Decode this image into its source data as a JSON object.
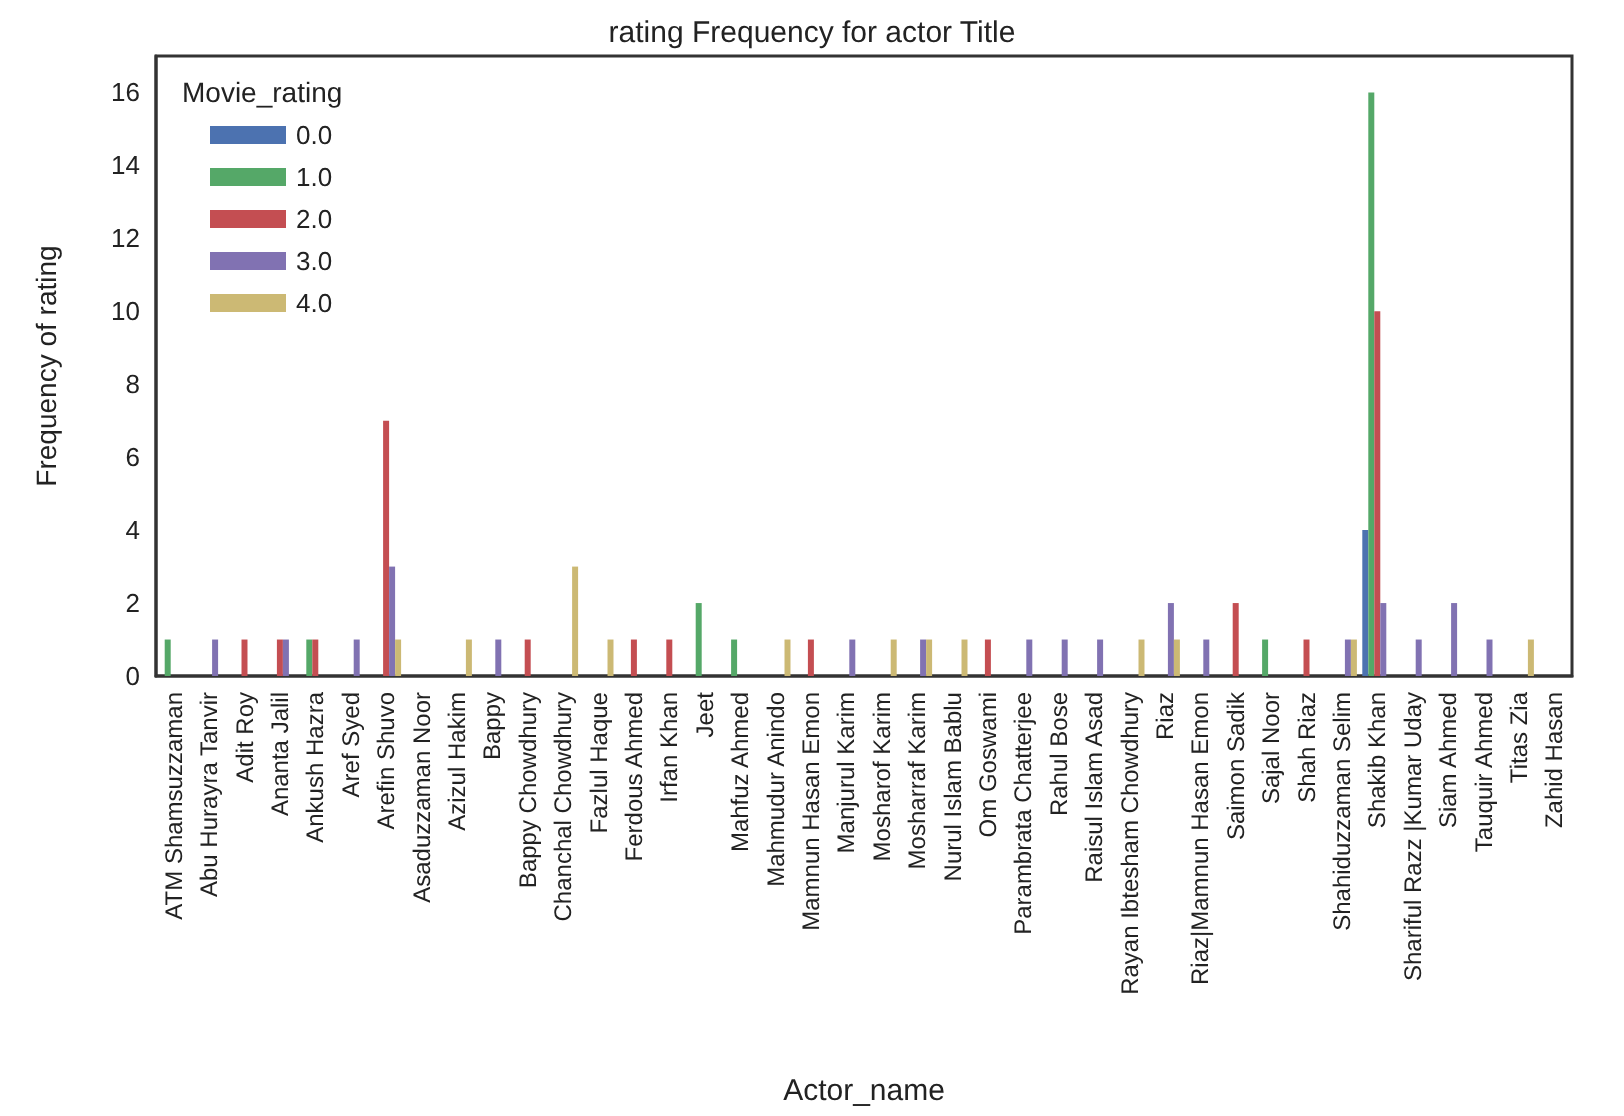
{
  "chart_data": {
    "type": "bar",
    "title": "rating Frequency for actor Title",
    "xlabel": "Actor_name",
    "ylabel": "Frequency of rating",
    "legend_title": "Movie_rating",
    "legend": "top left",
    "grid": false,
    "categories": [
      "ATM Shamsuzzaman",
      "Abu Hurayra Tanvir",
      "Adit Roy",
      "Ananta Jalil",
      "Ankush Hazra",
      "Aref Syed",
      "Arefin Shuvo",
      "Asaduzzaman Noor",
      "Azizul Hakim",
      "Bappy",
      "Bappy Chowdhury",
      "Chanchal Chowdhury",
      "Fazlul Haque",
      "Ferdous Ahmed",
      "Irfan Khan",
      "Jeet",
      "Mahfuz Ahmed",
      "Mahmudur Anindo",
      "Mamnun Hasan Emon",
      "Manjurul Karim",
      "Mosharof Karim",
      "Mosharraf Karim",
      "Nurul Islam Bablu",
      "Om Goswami",
      "Parambrata Chatterjee",
      "Rahul Bose",
      "Raisul Islam Asad",
      "Rayan Ibtesham Chowdhury",
      "Riaz",
      "Riaz|Mamnun Hasan Emon",
      "Saimon Sadik",
      "Sajal Noor",
      "Shah Riaz",
      "Shahiduzzaman Selim",
      "Shakib Khan",
      "Shariful Razz |Kumar Uday",
      "Siam Ahmed",
      "Tauquir Ahmed",
      "Titas Zia",
      "Zahid Hasan"
    ],
    "series": [
      {
        "name": "0.0",
        "color": "#4c72b0",
        "values": [
          null,
          null,
          null,
          null,
          null,
          null,
          null,
          null,
          null,
          null,
          null,
          null,
          null,
          null,
          null,
          null,
          null,
          null,
          null,
          null,
          null,
          null,
          null,
          null,
          null,
          null,
          null,
          null,
          null,
          null,
          null,
          null,
          null,
          null,
          4,
          null,
          null,
          null,
          null,
          null
        ]
      },
      {
        "name": "1.0",
        "color": "#55a868",
        "values": [
          1,
          null,
          null,
          null,
          1,
          null,
          null,
          null,
          null,
          null,
          null,
          null,
          null,
          null,
          null,
          2,
          1,
          null,
          null,
          null,
          null,
          null,
          null,
          null,
          null,
          null,
          null,
          null,
          null,
          null,
          null,
          1,
          null,
          null,
          16,
          null,
          null,
          null,
          null,
          null
        ]
      },
      {
        "name": "2.0",
        "color": "#c44e52",
        "values": [
          null,
          null,
          1,
          1,
          1,
          null,
          7,
          null,
          null,
          null,
          1,
          null,
          null,
          1,
          1,
          null,
          null,
          null,
          1,
          null,
          null,
          null,
          null,
          1,
          null,
          null,
          null,
          null,
          null,
          null,
          2,
          null,
          1,
          null,
          10,
          null,
          null,
          null,
          null,
          null
        ]
      },
      {
        "name": "3.0",
        "color": "#8172b2",
        "values": [
          null,
          1,
          null,
          1,
          null,
          1,
          3,
          null,
          null,
          1,
          null,
          null,
          null,
          null,
          null,
          null,
          null,
          null,
          null,
          1,
          null,
          1,
          null,
          null,
          1,
          1,
          1,
          null,
          2,
          1,
          null,
          null,
          null,
          1,
          2,
          1,
          2,
          1,
          null,
          null
        ]
      },
      {
        "name": "4.0",
        "color": "#ccb974",
        "values": [
          null,
          null,
          null,
          null,
          null,
          null,
          1,
          null,
          1,
          null,
          null,
          3,
          1,
          null,
          null,
          null,
          null,
          1,
          null,
          null,
          1,
          1,
          1,
          null,
          null,
          null,
          null,
          1,
          1,
          null,
          null,
          null,
          null,
          1,
          null,
          null,
          null,
          null,
          1,
          null
        ]
      }
    ],
    "ylim": [
      0,
      17
    ],
    "yticks": [
      0,
      2,
      4,
      6,
      8,
      10,
      12,
      14,
      16
    ]
  }
}
